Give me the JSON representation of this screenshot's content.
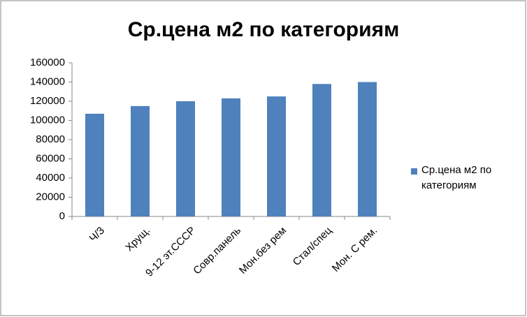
{
  "chart_data": {
    "type": "bar",
    "title": "Ср.цена м2 по категориям",
    "categories": [
      "Ч/З",
      "Хрущ.",
      "9-12 эт.СССР",
      "Совр.панель",
      "Мон.без рем",
      "Стал/спец",
      "Мон. С рем."
    ],
    "series": [
      {
        "name": "Ср.цена м2 по категориям",
        "color": "#4f81bd",
        "values": [
          107000,
          115000,
          120000,
          123000,
          125000,
          138000,
          140000
        ]
      }
    ],
    "ylim": [
      0,
      160000
    ],
    "yticks": [
      0,
      20000,
      40000,
      60000,
      80000,
      100000,
      120000,
      140000,
      160000
    ],
    "grid": false,
    "legend": "right"
  }
}
